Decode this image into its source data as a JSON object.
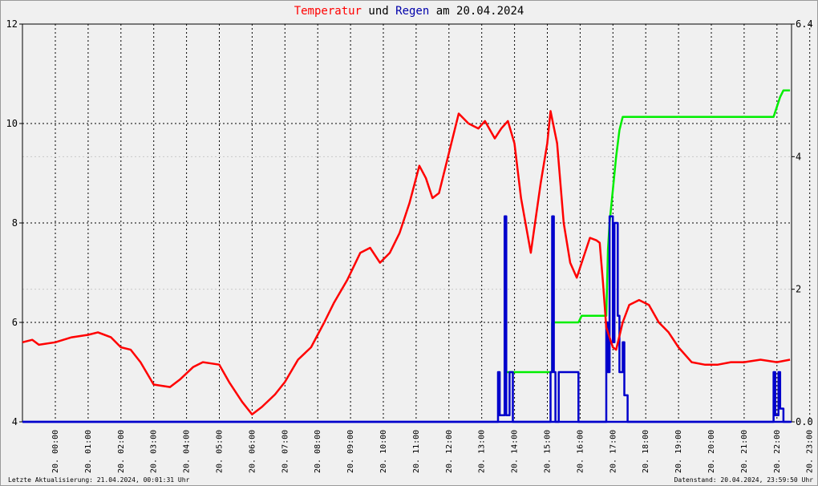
{
  "title": {
    "part1": "Temperatur",
    "part2": " und ",
    "part3": "Regen",
    "part4": " am 20.04.2024"
  },
  "footer": {
    "left": "Letzte Aktualisierung: 21.04.2024, 00:01:31 Uhr",
    "right": "Datenstand: 20.04.2024, 23:59:50 Uhr"
  },
  "colors": {
    "temperature": "#ff0000",
    "rain": "#0000cc",
    "rain_sum": "#00ee00",
    "grid": "#000000",
    "background": "#f0f0f0"
  },
  "chart_data": {
    "type": "line",
    "x_tick_labels": [
      "20. 00:00",
      "20. 01:00",
      "20. 02:00",
      "20. 03:00",
      "20. 04:00",
      "20. 05:00",
      "20. 06:00",
      "20. 07:00",
      "20. 08:00",
      "20. 09:00",
      "20. 10:00",
      "20. 11:00",
      "20. 12:00",
      "20. 13:00",
      "20. 14:00",
      "20. 15:00",
      "20. 16:00",
      "20. 17:00",
      "20. 18:00",
      "20. 19:00",
      "20. 20:00",
      "20. 21:00",
      "20. 22:00",
      "20. 23:00"
    ],
    "y_left": {
      "range": [
        4,
        12
      ],
      "ticks": [
        "4",
        "6",
        "8",
        "10",
        "12"
      ]
    },
    "y_right": {
      "range": [
        0,
        6
      ],
      "ticks": [
        "0.0",
        "2",
        "4",
        "6.4"
      ]
    },
    "x_range_hours": [
      0,
      23.4
    ],
    "grid": true,
    "series": [
      {
        "role": "temperature",
        "axis": "left",
        "x": [
          0,
          0.3,
          0.5,
          1,
          1.5,
          2,
          2.3,
          2.7,
          3,
          3.3,
          3.6,
          4,
          4.5,
          4.8,
          5.2,
          5.5,
          6,
          6.3,
          6.7,
          7,
          7.3,
          7.7,
          8,
          8.4,
          8.8,
          9.2,
          9.5,
          9.9,
          10.3,
          10.6,
          10.9,
          11.2,
          11.5,
          11.8,
          12.1,
          12.3,
          12.5,
          12.7,
          13,
          13.3,
          13.6,
          13.9,
          14.1,
          14.4,
          14.6,
          14.8,
          15,
          15.2,
          15.5,
          15.8,
          16,
          16.1,
          16.3,
          16.5,
          16.7,
          16.9,
          17.1,
          17.3,
          17.5,
          17.6,
          17.7,
          17.8,
          18,
          18.1,
          18.3,
          18.5,
          18.8,
          19.1,
          19.4,
          19.7,
          20,
          20.4,
          20.8,
          21.2,
          21.6,
          22,
          22.5,
          23,
          23.4
        ],
        "values": [
          5.6,
          5.65,
          5.55,
          5.6,
          5.7,
          5.75,
          5.8,
          5.7,
          5.5,
          5.45,
          5.2,
          4.75,
          4.7,
          4.85,
          5.1,
          5.2,
          5.15,
          4.8,
          4.4,
          4.15,
          4.3,
          4.55,
          4.8,
          5.25,
          5.5,
          6.0,
          6.4,
          6.85,
          7.4,
          7.5,
          7.2,
          7.4,
          7.8,
          8.4,
          9.15,
          8.9,
          8.5,
          8.6,
          9.4,
          10.2,
          10.0,
          9.9,
          10.05,
          9.7,
          9.9,
          10.05,
          9.6,
          8.5,
          7.4,
          8.8,
          9.6,
          10.25,
          9.6,
          8.0,
          7.2,
          6.9,
          7.3,
          7.7,
          7.65,
          7.6,
          6.8,
          5.9,
          5.5,
          5.45,
          6.0,
          6.35,
          6.45,
          6.35,
          6.0,
          5.8,
          5.5,
          5.2,
          5.15,
          5.15,
          5.2,
          5.2,
          5.25,
          5.2,
          5.25
        ]
      },
      {
        "role": "rain",
        "axis": "right",
        "x": [
          0,
          14.5,
          14.5,
          14.55,
          14.55,
          14.7,
          14.7,
          14.75,
          14.75,
          14.85,
          14.85,
          14.95,
          14.95,
          15.0,
          15.0,
          15.05,
          15.05,
          15.15,
          15.15,
          15.25,
          15.25,
          15.3,
          15.3,
          16.1,
          16.1,
          16.15,
          16.15,
          16.2,
          16.2,
          16.25,
          16.25,
          16.35,
          16.35,
          16.95,
          16.95,
          17.0,
          17.0,
          17.8,
          17.8,
          17.85,
          17.85,
          17.9,
          17.9,
          18.0,
          18.0,
          18.05,
          18.05,
          18.15,
          18.15,
          18.2,
          18.2,
          18.3,
          18.3,
          18.35,
          18.35,
          18.45,
          18.45,
          18.5,
          18.5,
          18.6,
          18.6,
          22.9,
          22.9,
          22.95,
          22.95,
          23.05,
          23.05,
          23.1,
          23.1,
          23.2,
          23.2,
          23.4
        ],
        "values": [
          0,
          0,
          0.75,
          0.75,
          0.1,
          0.1,
          3.1,
          3.1,
          0.1,
          0.1,
          0.75,
          0.75,
          0,
          0,
          0,
          0,
          0,
          0,
          0,
          0,
          0,
          0,
          0,
          0,
          0.75,
          0.75,
          3.1,
          3.1,
          0.75,
          0.75,
          0,
          0,
          0.75,
          0.75,
          0,
          0,
          0,
          0,
          1.5,
          1.5,
          0.75,
          0.75,
          3.1,
          3.1,
          1.2,
          1.2,
          3.0,
          3.0,
          1.6,
          1.6,
          0.75,
          0.75,
          1.2,
          1.2,
          0.4,
          0.4,
          0,
          0,
          0,
          0,
          0,
          0,
          0.75,
          0.75,
          0.1,
          0.1,
          0.75,
          0.75,
          0.2,
          0.2,
          0,
          0
        ]
      },
      {
        "role": "rain_sum",
        "axis": "right",
        "x": [
          14.75,
          15.2,
          15.2,
          16.15,
          16.15,
          16.3,
          16.3,
          16.95,
          16.95,
          17.05,
          17.05,
          17.8,
          17.85,
          17.9,
          18.0,
          18.1,
          18.2,
          18.3,
          18.4,
          18.5,
          18.6,
          22.9,
          23.0,
          23.1,
          23.2,
          23.4
        ],
        "values": [
          0.75,
          0.75,
          0.75,
          0.75,
          1.5,
          1.5,
          1.5,
          1.5,
          1.5,
          1.6,
          1.6,
          1.6,
          2.6,
          3.0,
          3.5,
          4.0,
          4.4,
          4.6,
          4.6,
          4.6,
          4.6,
          4.6,
          4.75,
          4.9,
          5.0,
          5.0
        ]
      }
    ]
  }
}
